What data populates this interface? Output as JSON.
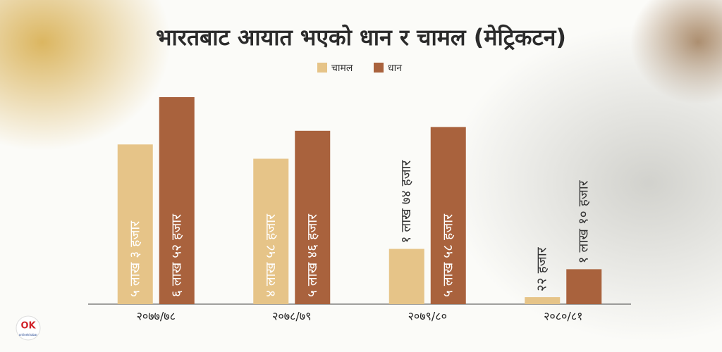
{
  "chart_data": {
    "type": "bar",
    "title": "भारतबाट आयात भएको धान र चामल (मेट्रिकटन)",
    "categories": [
      "२०७७/७८",
      "२०७८/७९",
      "२०७९/८०",
      "२०८०/८१"
    ],
    "series": [
      {
        "name": "चामल",
        "color": "#e6c488",
        "values": [
          503000,
          458000,
          174000,
          22000
        ],
        "value_labels": [
          "५ लाख ३ हजार",
          "४ लाख ५८ हजार",
          "१ लाख ७४ हजार",
          "२२ हजार"
        ]
      },
      {
        "name": "धान",
        "color": "#a9623d",
        "values": [
          652000,
          546000,
          558000,
          110000
        ],
        "value_labels": [
          "६ लाख ५२ हजार",
          "५ लाख ४६ हजार",
          "५ लाख ५८ हजार",
          "१ लाख १० हजार"
        ]
      }
    ]
  },
  "logo": {
    "mark": "OK",
    "text": "onlinekhabar"
  }
}
